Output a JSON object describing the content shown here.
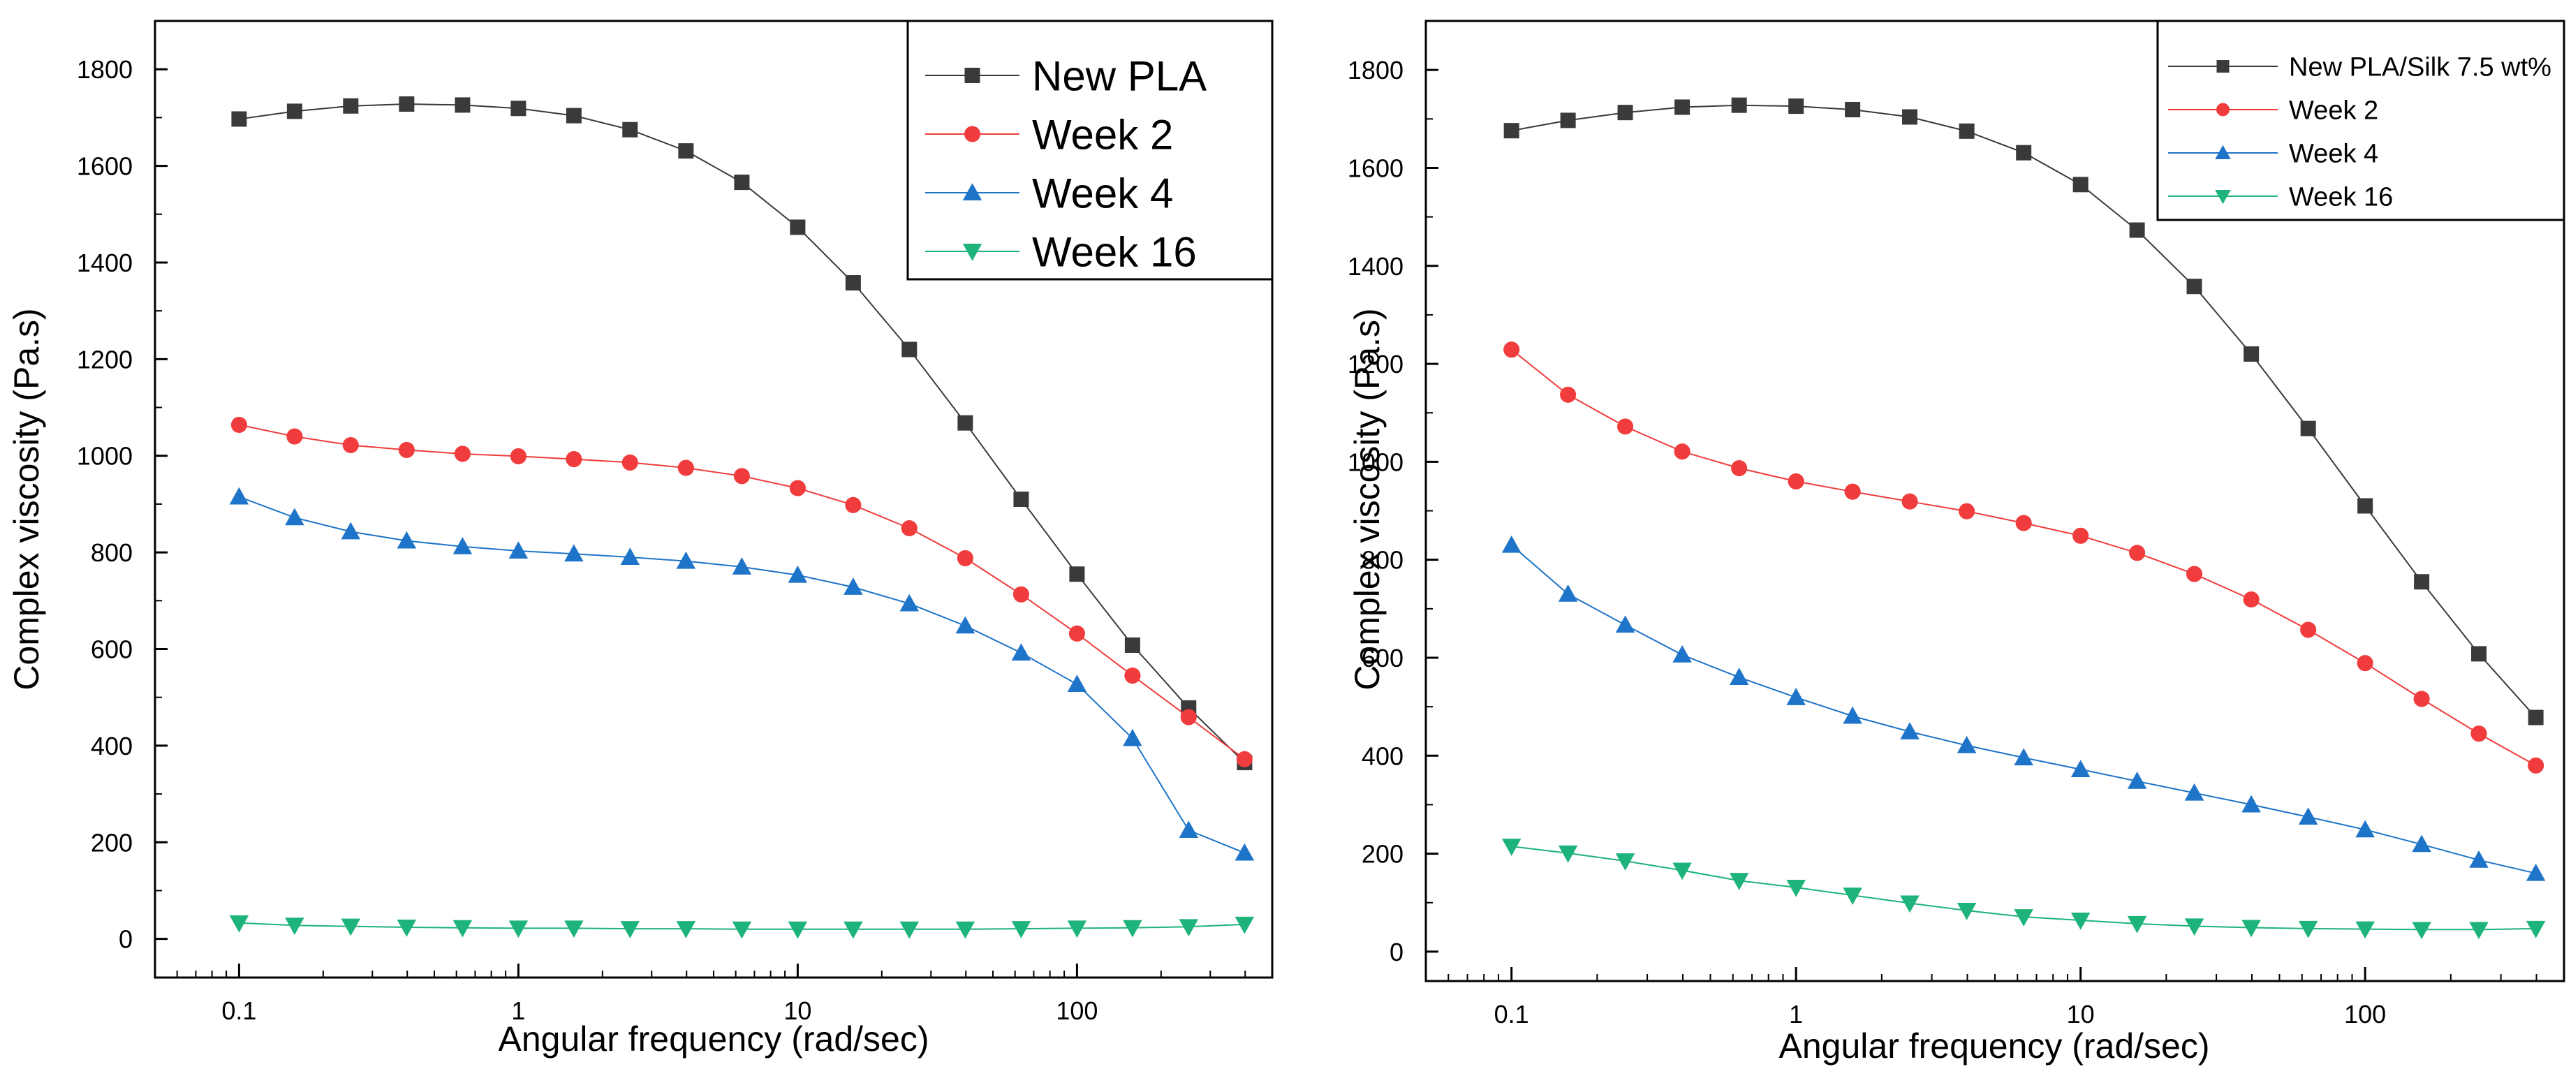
{
  "chart_data": [
    {
      "type": "line",
      "xscale": "log",
      "xlabel": "Angular frequency (rad/sec)",
      "ylabel": "Complex viscosity (Pa.s)",
      "xlim": [
        0.05,
        500
      ],
      "ylim": [
        -80,
        1900
      ],
      "xticks": [
        0.1,
        1,
        10,
        100
      ],
      "xtick_labels": [
        "0.1",
        "1",
        "10",
        "100"
      ],
      "yticks": [
        0,
        200,
        400,
        600,
        800,
        1000,
        1200,
        1400,
        1600,
        1800
      ],
      "ytick_labels": [
        "0",
        "200",
        "400",
        "600",
        "800",
        "1000",
        "1200",
        "1400",
        "1600",
        "1800"
      ],
      "legend_position": "top-right",
      "x": [
        0.1,
        0.158,
        0.251,
        0.398,
        0.631,
        1,
        1.58,
        2.51,
        3.98,
        6.31,
        10,
        15.8,
        25.1,
        39.8,
        63.1,
        100,
        158,
        251,
        398
      ],
      "series": [
        {
          "name": "New PLA",
          "marker": "square",
          "color": "#3a3a3a",
          "values": [
            1697,
            1713,
            1724,
            1728,
            1726,
            1719,
            1704,
            1675,
            1631,
            1566,
            1473,
            1358,
            1220,
            1068,
            910,
            755,
            608,
            478,
            365
          ]
        },
        {
          "name": "Week 2",
          "marker": "circle",
          "color": "#f03c3c",
          "values": [
            1064,
            1040,
            1022,
            1012,
            1004,
            999,
            993,
            986,
            975,
            958,
            933,
            898,
            850,
            788,
            713,
            632,
            545,
            459,
            372
          ]
        },
        {
          "name": "Week 4",
          "marker": "triangle-up",
          "color": "#1e74c8",
          "values": [
            915,
            872,
            843,
            824,
            812,
            803,
            797,
            790,
            782,
            770,
            753,
            728,
            694,
            648,
            592,
            527,
            415,
            225,
            178
          ]
        },
        {
          "name": "Week 16",
          "marker": "triangle-down",
          "color": "#1db37a",
          "values": [
            33,
            28,
            26,
            24,
            23,
            22,
            22,
            21,
            21,
            20,
            20,
            20,
            20,
            20,
            21,
            22,
            23,
            25,
            30
          ]
        }
      ]
    },
    {
      "type": "line",
      "xscale": "log",
      "xlabel": "Angular frequency (rad/sec)",
      "ylabel": "Complex viscosity (Pa.s)",
      "xlim": [
        0.05,
        500
      ],
      "ylim": [
        -60,
        1900
      ],
      "xticks": [
        0.1,
        1,
        10,
        100
      ],
      "xtick_labels": [
        "0.1",
        "1",
        "10",
        "100"
      ],
      "yticks": [
        0,
        200,
        400,
        600,
        800,
        1000,
        1200,
        1400,
        1600,
        1800
      ],
      "ytick_labels": [
        "0",
        "200",
        "400",
        "600",
        "800",
        "1000",
        "1200",
        "1400",
        "1600",
        "1800"
      ],
      "legend_position": "top-right",
      "x": [
        0.1,
        0.158,
        0.251,
        0.398,
        0.631,
        1,
        1.58,
        2.51,
        3.98,
        6.31,
        10,
        15.8,
        25.1,
        39.8,
        63.1,
        100,
        158,
        251,
        398
      ],
      "series": [
        {
          "name": "New PLA/Silk 7.5 wt%",
          "marker": "square",
          "color": "#3a3a3a",
          "values": [
            1676,
            1697,
            1713,
            1724,
            1728,
            1726,
            1719,
            1704,
            1675,
            1631,
            1566,
            1473,
            1358,
            1220,
            1068,
            910,
            755,
            608,
            478
          ]
        },
        {
          "name": "Week 2",
          "marker": "circle",
          "color": "#f03c3c",
          "values": [
            1229,
            1137,
            1072,
            1021,
            987,
            960,
            939,
            919,
            899,
            875,
            849,
            814,
            771,
            719,
            657,
            589,
            516,
            445,
            380
          ]
        },
        {
          "name": "Week 4",
          "marker": "triangle-up",
          "color": "#1e74c8",
          "values": [
            830,
            730,
            667,
            606,
            560,
            519,
            481,
            449,
            421,
            396,
            372,
            348,
            324,
            300,
            275,
            249,
            219,
            187,
            160
          ]
        },
        {
          "name": "Week 16",
          "marker": "triangle-down",
          "color": "#1db37a",
          "values": [
            215,
            201,
            185,
            166,
            145,
            131,
            115,
            99,
            84,
            71,
            64,
            57,
            52,
            49,
            47,
            46,
            45,
            45,
            47
          ]
        }
      ]
    }
  ]
}
